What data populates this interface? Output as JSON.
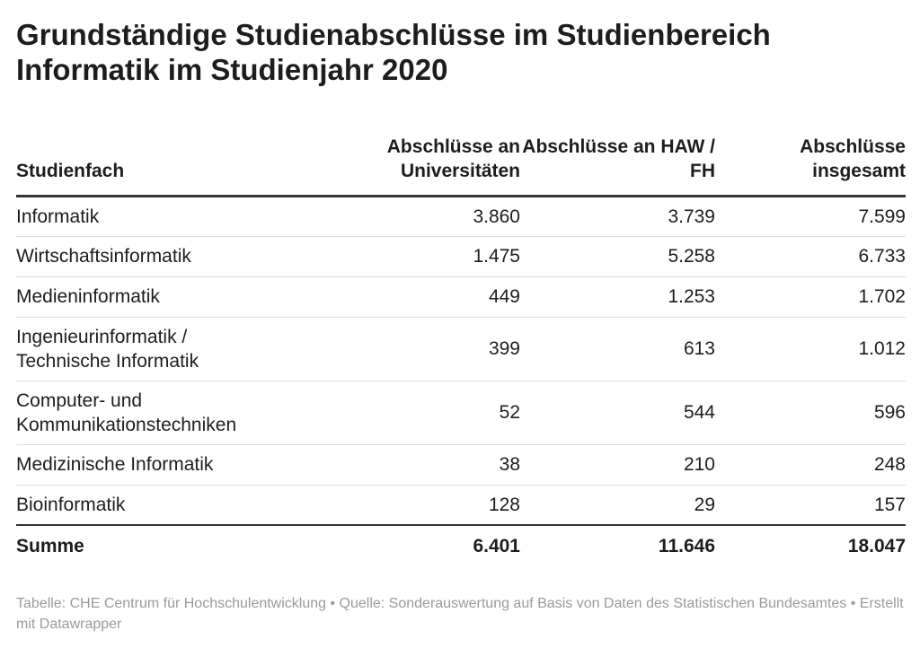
{
  "title": "Grundständige Studienabschlüsse im Studienbereich Informatik im Studienjahr 2020",
  "chart_data": {
    "type": "table",
    "title": "Grundständige Studienabschlüsse im Studienbereich Informatik im Studienjahr 2020",
    "columns": [
      "Studienfach",
      "Abschlüsse an Universitäten",
      "Abschlüsse an HAW / FH",
      "Abschlüsse insgesamt"
    ],
    "rows": [
      [
        "Informatik",
        "3.860",
        "3.739",
        "7.599"
      ],
      [
        "Wirtschaftsinformatik",
        "1.475",
        "5.258",
        "6.733"
      ],
      [
        "Medieninformatik",
        "449",
        "1.253",
        "1.702"
      ],
      [
        "Ingenieurinformatik / Technische Informatik",
        "399",
        "613",
        "1.012"
      ],
      [
        "Computer- und Kommunikationstechniken",
        "52",
        "544",
        "596"
      ],
      [
        "Medizinische Informatik",
        "38",
        "210",
        "248"
      ],
      [
        "Bioinformatik",
        "128",
        "29",
        "157"
      ]
    ],
    "total": [
      "Summe",
      "6.401",
      "11.646",
      "18.047"
    ]
  },
  "footer": "Tabelle: CHE Centrum für Hochschulentwicklung • Quelle: Sonderauswertung auf Basis von Daten des Statistischen Bundesamtes • Erstellt mit Datawrapper"
}
